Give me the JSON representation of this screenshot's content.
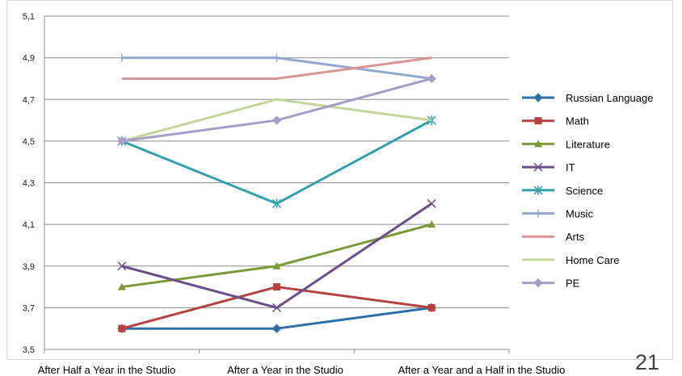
{
  "slide_number": "21",
  "chart_data": {
    "type": "line",
    "title": "",
    "xlabel": "",
    "ylabel": "",
    "ylim": [
      3.5,
      5.1
    ],
    "y_ticks": [
      "3,5",
      "3,7",
      "3,9",
      "4,1",
      "4,3",
      "4,5",
      "4,7",
      "4,9",
      "5,1"
    ],
    "y_tick_values": [
      3.5,
      3.7,
      3.9,
      4.1,
      4.3,
      4.5,
      4.7,
      4.9,
      5.1
    ],
    "grid": true,
    "legend_position": "right",
    "categories": [
      "After Half a Year in the Studio",
      "After a Year in the Studio",
      "After a Year and a Half in the Studio"
    ],
    "series": [
      {
        "name": "Russian Language",
        "values": [
          3.6,
          3.6,
          3.7
        ],
        "color": "#2f6fa7",
        "marker": "diamond"
      },
      {
        "name": "Math",
        "values": [
          3.6,
          3.8,
          3.7
        ],
        "color": "#b5423f",
        "marker": "square"
      },
      {
        "name": "Literature",
        "values": [
          3.8,
          3.9,
          4.1
        ],
        "color": "#7a9a3a",
        "marker": "triangle"
      },
      {
        "name": "IT",
        "values": [
          3.9,
          3.7,
          4.2
        ],
        "color": "#6a4f8b",
        "marker": "x"
      },
      {
        "name": "Science",
        "values": [
          4.5,
          4.2,
          4.6
        ],
        "color": "#34a0ae",
        "marker": "star"
      },
      {
        "name": "Music",
        "values": [
          4.9,
          4.9,
          4.8
        ],
        "color": "#93a9cf",
        "marker": "plus"
      },
      {
        "name": "Arts",
        "values": [
          4.8,
          4.8,
          4.9
        ],
        "color": "#d99594",
        "marker": "none"
      },
      {
        "name": "Home Care",
        "values": [
          4.5,
          4.7,
          4.6
        ],
        "color": "#c3d69b",
        "marker": "none"
      },
      {
        "name": "PE",
        "values": [
          4.5,
          4.6,
          4.8
        ],
        "color": "#a89cc8",
        "marker": "diamond"
      }
    ]
  }
}
